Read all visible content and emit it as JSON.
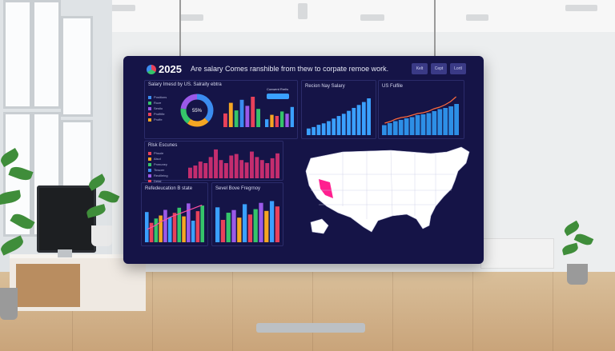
{
  "dashboard": {
    "year": "2025",
    "headline": "Are salary Comes ranshible from thew to corpate remoe work.",
    "header_buttons": [
      "Kelt",
      "Cept",
      "Lortl"
    ]
  },
  "panels": {
    "salary_by_us": {
      "title": "Salary Imesd by US. Salraity ebtra",
      "donut_label": "55%",
      "legend": [
        {
          "label": "Positions",
          "color": "#3b8cf0"
        },
        {
          "label": "Roze",
          "color": "#35c46a"
        },
        {
          "label": "Sestio",
          "color": "#9b59e8"
        },
        {
          "label": "Profitfle",
          "color": "#e8415a"
        },
        {
          "label": "Proffe",
          "color": "#f5a623"
        }
      ],
      "bar_colors": [
        "#e8415a",
        "#f5a623",
        "#35c46a",
        "#3b8cf0",
        "#9b59e8",
        "#e8415a",
        "#35c46a"
      ],
      "bars": [
        0.45,
        0.8,
        0.55,
        0.9,
        0.7,
        1.0,
        0.6
      ],
      "mini_label": "Conwent Rrelis",
      "mini_bars": [
        0.35,
        0.55,
        0.5,
        0.7,
        0.6,
        0.9
      ]
    },
    "region_salary": {
      "title": "Recion Nay Salary",
      "bars": [
        0.18,
        0.22,
        0.28,
        0.32,
        0.38,
        0.45,
        0.52,
        0.58,
        0.66,
        0.74,
        0.82,
        0.9,
        1.0
      ]
    },
    "us_fulfile": {
      "title": "US Fulfile",
      "bars": [
        0.25,
        0.3,
        0.35,
        0.38,
        0.42,
        0.45,
        0.5,
        0.52,
        0.55,
        0.6,
        0.65,
        0.68,
        0.72,
        0.78
      ],
      "line": [
        0.3,
        0.34,
        0.4,
        0.44,
        0.46,
        0.5,
        0.54,
        0.56,
        0.6,
        0.66,
        0.7,
        0.76,
        0.84,
        0.96
      ]
    },
    "risk_escunes": {
      "title": "Rlsk Escunes",
      "legend": [
        {
          "label": "Phsoie",
          "color": "#e8415a"
        },
        {
          "label": "Alsol",
          "color": "#f5a623"
        },
        {
          "label": "Pnmuney",
          "color": "#35c46a"
        },
        {
          "label": "Tinsoer",
          "color": "#3b8cf0"
        },
        {
          "label": "Reoilleing",
          "color": "#9b59e8"
        },
        {
          "label": "Detal",
          "color": "#e8415a"
        }
      ],
      "bars": [
        0.35,
        0.42,
        0.55,
        0.5,
        0.7,
        0.95,
        0.6,
        0.5,
        0.75,
        0.8,
        0.6,
        0.52,
        0.88,
        0.7,
        0.6,
        0.5,
        0.66,
        0.82
      ]
    },
    "refedcation": {
      "title": "Refedeucation B state",
      "bars": [
        0.7,
        0.45,
        0.55,
        0.62,
        0.75,
        0.58,
        0.68,
        0.8,
        0.6,
        0.9,
        0.5,
        0.72,
        0.85
      ],
      "line": [
        0.3,
        0.35,
        0.4,
        0.48,
        0.52,
        0.58,
        0.62,
        0.66,
        0.7,
        0.74,
        0.78,
        0.82,
        0.86
      ]
    },
    "sevel_bove": {
      "title": "Sevel Bove Fregrnoy",
      "bars": [
        0.78,
        0.5,
        0.66,
        0.72,
        0.55,
        0.85,
        0.62,
        0.74,
        0.88,
        0.7,
        0.92,
        0.8
      ]
    },
    "map": {
      "highlight_color": "#ff1f8f"
    }
  },
  "colors": {
    "board_bg": "#151447",
    "accent_bar": "#3aa0ff",
    "pink": "#e8415a",
    "magenta": "#c42d6e"
  }
}
